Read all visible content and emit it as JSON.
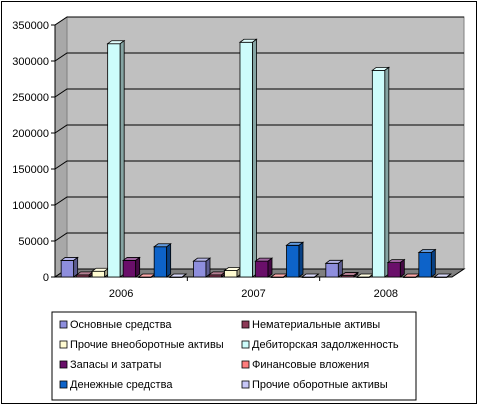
{
  "chart_data": {
    "type": "bar",
    "title": "",
    "xlabel": "",
    "ylabel": "",
    "categories": [
      "2006",
      "2007",
      "2008"
    ],
    "ylim": [
      0,
      350000
    ],
    "yticks": [
      0,
      50000,
      100000,
      150000,
      200000,
      250000,
      300000,
      350000
    ],
    "ytick_labels": [
      "0",
      "50000",
      "100000",
      "150000",
      "200000",
      "250000",
      "300000",
      "350000"
    ],
    "grid": "horizontal",
    "legend_position": "bottom",
    "series": [
      {
        "name": "Основные средства",
        "color": "#8e8edd",
        "values": [
          23000,
          22000,
          19000
        ]
      },
      {
        "name": "Нематериальные активы",
        "color": "#8c3a57",
        "values": [
          3000,
          3000,
          2000
        ]
      },
      {
        "name": "Прочие внеоборотные активы",
        "color": "#fffbd1",
        "values": [
          8000,
          9000,
          0
        ]
      },
      {
        "name": "Дебиторская задолженность",
        "color": "#cdfcfb",
        "values": [
          324000,
          326000,
          287000
        ]
      },
      {
        "name": "Запасы и затраты",
        "color": "#6a0f6a",
        "values": [
          23000,
          22000,
          20000
        ]
      },
      {
        "name": "Финансовые вложения",
        "color": "#ff7d7d",
        "values": [
          0,
          0,
          0
        ]
      },
      {
        "name": "Денежные средства",
        "color": "#0d63c9",
        "values": [
          42000,
          44000,
          34000
        ]
      },
      {
        "name": "Прочие оборотные активы",
        "color": "#c8c8f8",
        "values": [
          0,
          0,
          0
        ]
      }
    ]
  }
}
